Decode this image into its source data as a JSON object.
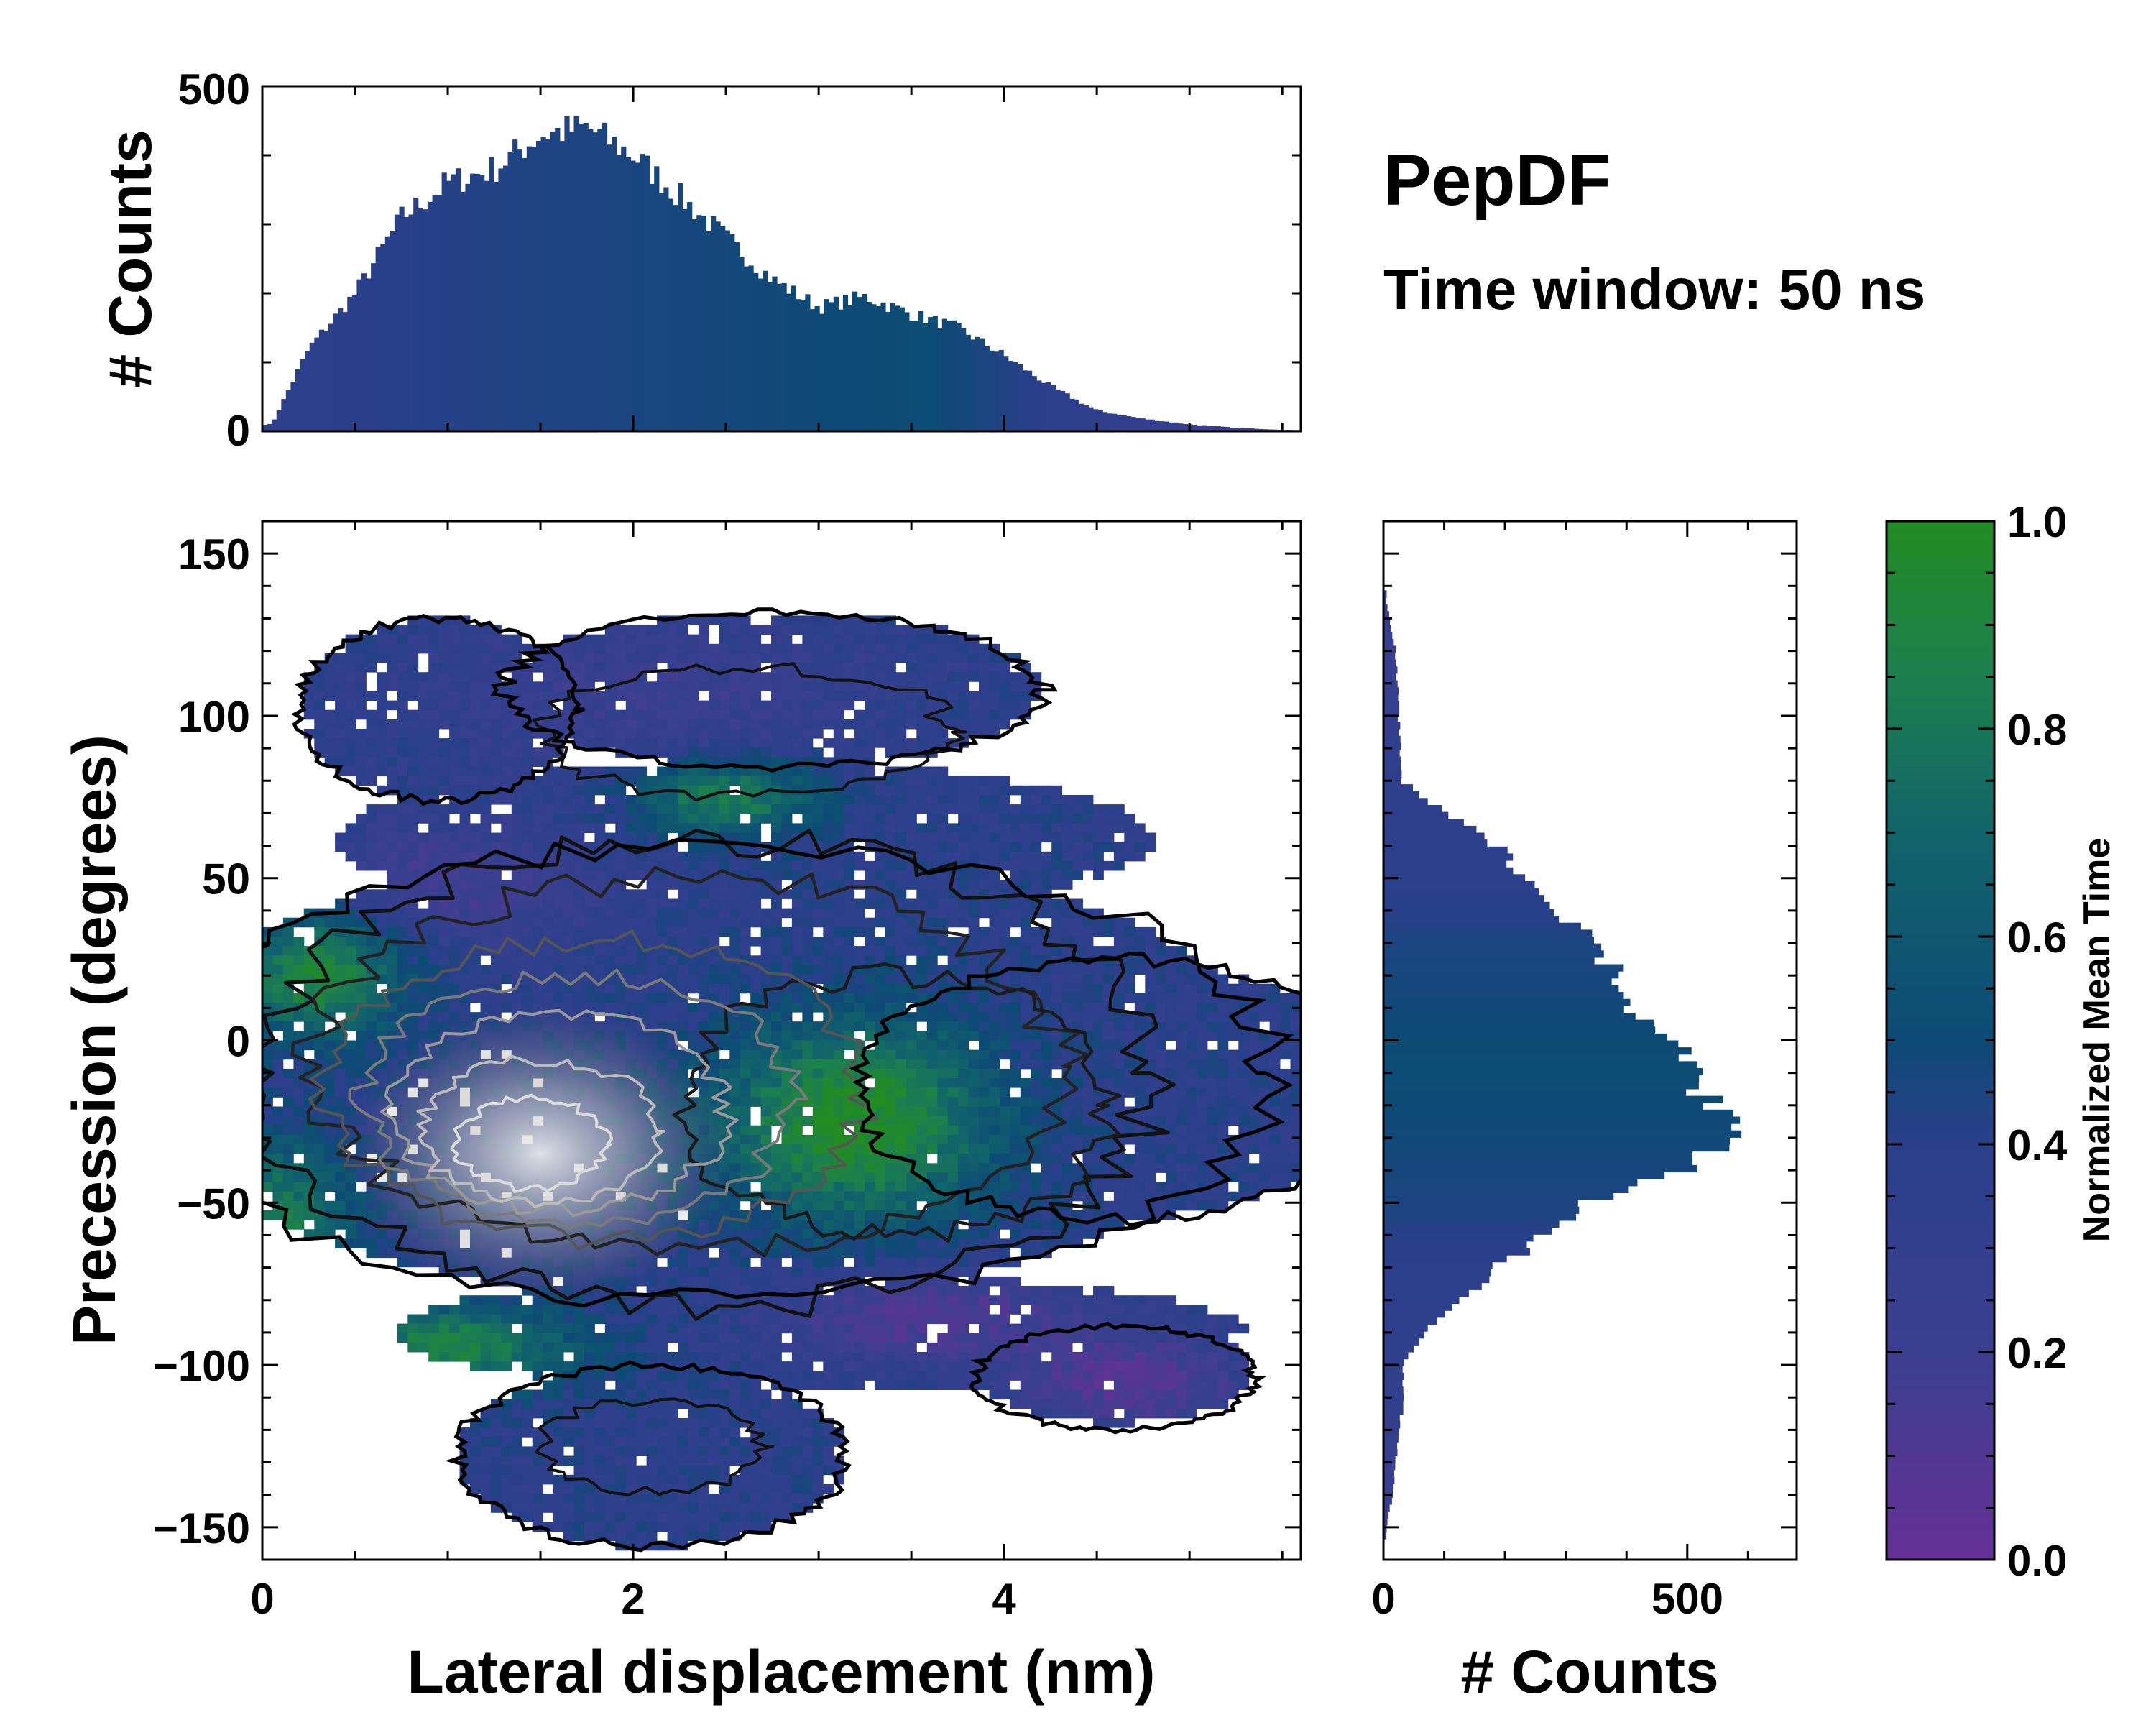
{
  "chart_data": {
    "type": "heatmap",
    "title": "PepDF",
    "subtitle": "Time window: 50 ns",
    "main": {
      "xlabel": "Lateral displacement (nm)",
      "ylabel": "Precession (degrees)",
      "xlim": [
        0,
        5.6
      ],
      "ylim": [
        -160,
        160
      ],
      "xticks": [
        0,
        2,
        4
      ],
      "yticks": [
        -150,
        -100,
        -50,
        0,
        50,
        100,
        150
      ],
      "xticklabels": [
        "0",
        "2",
        "4"
      ],
      "yticklabels": [
        "−150",
        "−100",
        "−50",
        "0",
        "50",
        "100",
        "150"
      ],
      "density_peak": {
        "x": 1.5,
        "y": -35
      },
      "colorbar": {
        "label": "Normalized Mean Time",
        "range": [
          0,
          1
        ],
        "ticks": [
          0,
          0.2,
          0.4,
          0.6,
          0.8,
          1
        ],
        "ticklabels": [
          "0.0",
          "0.2",
          "0.4",
          "0.6",
          "0.8",
          "1.0"
        ],
        "colors": [
          "#653096",
          "#3b3f8f",
          "#0d4a75",
          "#11646a",
          "#1c7f4e",
          "#228b22"
        ]
      }
    },
    "top_histogram": {
      "ylabel": "# Counts",
      "ylim": [
        0,
        500
      ],
      "yticks": [
        0,
        500
      ],
      "yticklabels": [
        "0",
        "500"
      ],
      "x": [
        0.05,
        0.25,
        0.5,
        0.75,
        1.0,
        1.25,
        1.5,
        1.75,
        2.0,
        2.25,
        2.5,
        2.75,
        3.0,
        3.25,
        3.5,
        3.75,
        4.0,
        4.25,
        4.5,
        4.75,
        5.0,
        5.25,
        5.5
      ],
      "values": [
        10,
        120,
        200,
        310,
        360,
        380,
        430,
        440,
        400,
        340,
        280,
        220,
        180,
        195,
        170,
        150,
        110,
        65,
        30,
        18,
        10,
        5,
        2
      ]
    },
    "right_histogram": {
      "xlabel": "# Counts",
      "xlim": [
        0,
        680
      ],
      "xticks": [
        0,
        500
      ],
      "xticklabels": [
        "0",
        "500"
      ],
      "y": [
        135,
        120,
        100,
        80,
        70,
        60,
        50,
        40,
        30,
        20,
        10,
        0,
        -10,
        -20,
        -30,
        -40,
        -50,
        -60,
        -70,
        -80,
        -90,
        -100,
        -110,
        -120,
        -140,
        -150
      ],
      "values": [
        5,
        20,
        25,
        30,
        100,
        190,
        240,
        300,
        340,
        380,
        400,
        480,
        500,
        530,
        600,
        480,
        340,
        260,
        190,
        130,
        70,
        30,
        35,
        25,
        15,
        5
      ]
    }
  }
}
